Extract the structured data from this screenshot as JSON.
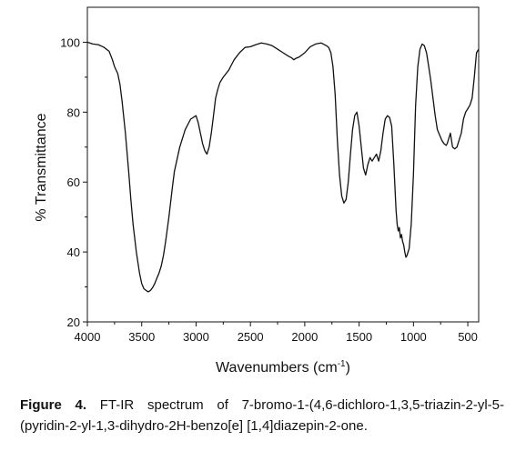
{
  "chart_data": {
    "type": "line",
    "xlabel": "Wavenumbers (cm",
    "xlabel_sup": "-1",
    "xlabel_suffix": ")",
    "ylabel": "% Transmittance",
    "xlim": [
      4000,
      400
    ],
    "ylim": [
      20,
      110
    ],
    "x_reversed": true,
    "x_ticks": [
      4000,
      3500,
      3000,
      2500,
      2000,
      1500,
      1000,
      500
    ],
    "y_ticks": [
      20,
      40,
      60,
      80,
      100
    ],
    "grid": false,
    "legend": "none",
    "line_color": "#111111",
    "series": [
      {
        "x": [
          4000,
          3950,
          3900,
          3850,
          3800,
          3770,
          3750,
          3720,
          3700,
          3680,
          3650,
          3620,
          3600,
          3580,
          3550,
          3520,
          3500,
          3480,
          3460,
          3440,
          3420,
          3400,
          3380,
          3360,
          3340,
          3320,
          3300,
          3280,
          3250,
          3220,
          3200,
          3150,
          3100,
          3050,
          3000,
          2980,
          2960,
          2940,
          2920,
          2900,
          2880,
          2860,
          2840,
          2820,
          2800,
          2780,
          2750,
          2700,
          2650,
          2600,
          2550,
          2500,
          2450,
          2400,
          2350,
          2300,
          2250,
          2200,
          2150,
          2120,
          2100,
          2080,
          2050,
          2000,
          1950,
          1900,
          1850,
          1800,
          1780,
          1760,
          1740,
          1720,
          1700,
          1680,
          1660,
          1640,
          1620,
          1600,
          1580,
          1560,
          1540,
          1520,
          1500,
          1480,
          1460,
          1440,
          1420,
          1400,
          1380,
          1360,
          1340,
          1320,
          1300,
          1280,
          1260,
          1240,
          1220,
          1200,
          1180,
          1160,
          1150,
          1140,
          1130,
          1120,
          1110,
          1100,
          1090,
          1080,
          1070,
          1060,
          1040,
          1020,
          1000,
          980,
          960,
          940,
          920,
          900,
          880,
          860,
          840,
          820,
          800,
          780,
          760,
          740,
          720,
          700,
          690,
          680,
          670,
          660,
          650,
          640,
          620,
          600,
          580,
          560,
          540,
          520,
          500,
          480,
          460,
          440,
          420,
          400
        ],
        "y": [
          100,
          99.5,
          99.3,
          98.6,
          97.4,
          95,
          93,
          91,
          88,
          83,
          74,
          63,
          55,
          48,
          40,
          34,
          31,
          29.5,
          29,
          28.6,
          29,
          29.8,
          31,
          32.5,
          34,
          36,
          39,
          43,
          50,
          58,
          63,
          70,
          75,
          78,
          79,
          77,
          74,
          71,
          69,
          68,
          70,
          74,
          79,
          84,
          86.5,
          88.5,
          90,
          92,
          95,
          97,
          98.5,
          98.7,
          99.3,
          99.8,
          99.5,
          99,
          98,
          97,
          96,
          95.5,
          95,
          95.4,
          95.8,
          97,
          98.7,
          99.5,
          99.8,
          99,
          98.5,
          97,
          93,
          85,
          72,
          62,
          56,
          54,
          55,
          60,
          68,
          75,
          79,
          80,
          76,
          70,
          64,
          62,
          65,
          67,
          66,
          67,
          68,
          66,
          69,
          74,
          78,
          79,
          78.5,
          76,
          65,
          52,
          48,
          46,
          47,
          44,
          45,
          43,
          42,
          40,
          38.5,
          39,
          41,
          48,
          62,
          82,
          93,
          98,
          99.5,
          99,
          97,
          93,
          89,
          84,
          79,
          75,
          73.5,
          72,
          71,
          70.5,
          71,
          72,
          73,
          74,
          72,
          70,
          69.5,
          70,
          72,
          74,
          78,
          80,
          81,
          82,
          84,
          90,
          97,
          98
        ]
      }
    ]
  },
  "caption": {
    "label": "Figure 4.",
    "text": " FT-IR spectrum of 7-bromo-1-(4,6-dichloro-1,3,5-triazin-2-yl-5-(pyridin-2-yl-1,3-dihydro-2H-benzo[e] [1,4]diazepin-2-one."
  }
}
